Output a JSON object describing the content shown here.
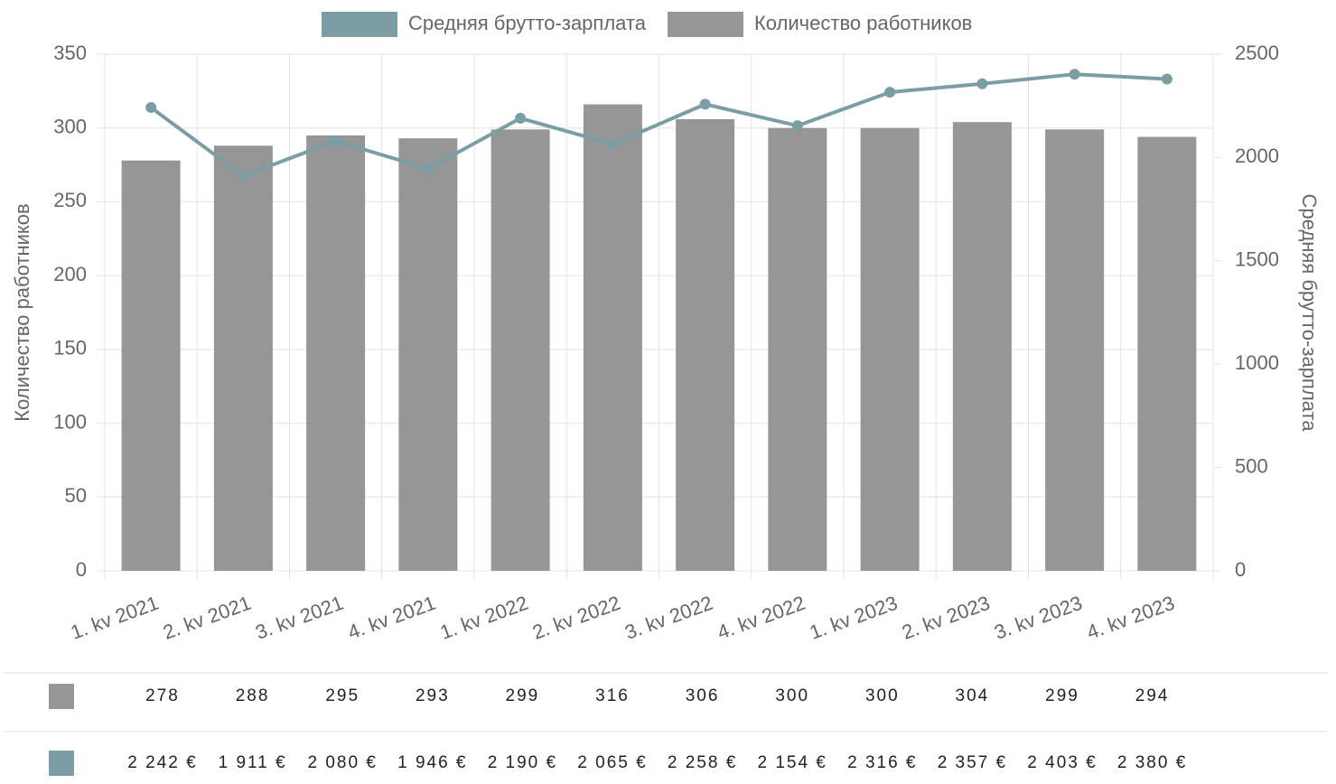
{
  "chart_data": {
    "type": "bar-line",
    "categories": [
      "1. kv 2021",
      "2. kv 2021",
      "3. kv 2021",
      "4. kv 2021",
      "1. kv 2022",
      "2. kv 2022",
      "3. kv 2022",
      "4. kv 2022",
      "1. kv 2023",
      "2. kv 2023",
      "3. kv 2023",
      "4. kv 2023"
    ],
    "series": [
      {
        "name": "Средняя брутто-зарплата",
        "type": "line",
        "axis": "y2",
        "color": "#7a9ea3",
        "values": [
          2242,
          1911,
          2080,
          1946,
          2190,
          2065,
          2258,
          2154,
          2316,
          2357,
          2403,
          2380
        ],
        "value_labels": [
          "2 242 €",
          "1 911 €",
          "2 080 €",
          "1 946 €",
          "2 190 €",
          "2 065 €",
          "2 258 €",
          "2 154 €",
          "2 316 €",
          "2 357 €",
          "2 403 €",
          "2 380 €"
        ]
      },
      {
        "name": "Количество работников",
        "type": "bar",
        "axis": "y",
        "color": "#969696",
        "values": [
          278,
          288,
          295,
          293,
          299,
          316,
          306,
          300,
          300,
          304,
          299,
          294
        ]
      }
    ],
    "ylabel": "Количество работников",
    "y2label": "Средняя брутто-зарплата",
    "ylim": [
      0,
      350
    ],
    "yticks": [
      0,
      50,
      100,
      150,
      200,
      250,
      300,
      350
    ],
    "y2lim": [
      0,
      2500
    ],
    "y2ticks": [
      0,
      500,
      1000,
      1500,
      2000,
      2500
    ],
    "grid": true,
    "legend": "top"
  }
}
